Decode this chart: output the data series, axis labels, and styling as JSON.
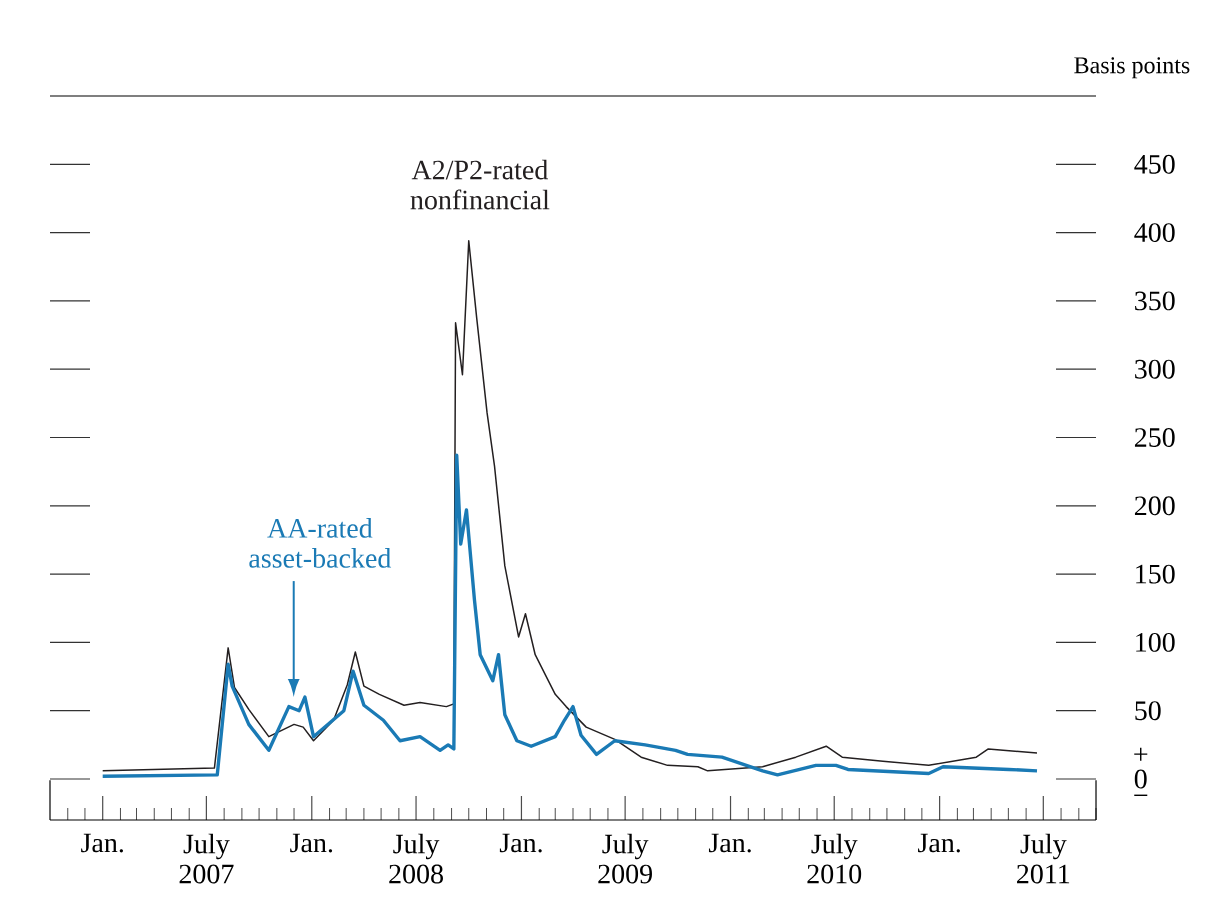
{
  "chart_data": {
    "type": "line",
    "ylabel": "Basis points",
    "annotations": [
      "+",
      "−"
    ],
    "xlim": [
      "2006-10",
      "2011-10"
    ],
    "ylim": [
      -30,
      500
    ],
    "xticks": [
      {
        "value": "2007-01",
        "label": "Jan."
      },
      {
        "value": "2007-07",
        "label": "July 2007"
      },
      {
        "value": "2008-01",
        "label": "Jan."
      },
      {
        "value": "2008-07",
        "label": "July 2008"
      },
      {
        "value": "2009-01",
        "label": "Jan."
      },
      {
        "value": "2009-07",
        "label": "July 2009"
      },
      {
        "value": "2010-01",
        "label": "Jan."
      },
      {
        "value": "2010-07",
        "label": "July 2010"
      },
      {
        "value": "2011-01",
        "label": "Jan."
      },
      {
        "value": "2011-07",
        "label": "July 2011"
      }
    ],
    "yticks": [
      0,
      50,
      100,
      150,
      200,
      250,
      300,
      350,
      400,
      450
    ],
    "series": [
      {
        "name": "A2/P2-rated nonfinancial",
        "color": "#231f20",
        "x": [
          "2007-01-01",
          "2007-07-15",
          "2007-08-08",
          "2007-08-19",
          "2007-09-13",
          "2007-10-18",
          "2007-12-01",
          "2007-12-17",
          "2008-01-04",
          "2008-02-08",
          "2008-03-03",
          "2008-03-17",
          "2008-04-01",
          "2008-04-28",
          "2008-06-10",
          "2008-07-08",
          "2008-08-23",
          "2008-09-05",
          "2008-09-08",
          "2008-09-20",
          "2008-10-01",
          "2008-10-15",
          "2008-11-02",
          "2008-11-15",
          "2008-12-03",
          "2008-12-27",
          "2009-01-08",
          "2009-01-25",
          "2009-02-12",
          "2009-03-01",
          "2009-03-20",
          "2009-04-24",
          "2009-06-13",
          "2009-07-29",
          "2009-09-13",
          "2009-11-05",
          "2009-11-22",
          "2010-02-26",
          "2010-04-25",
          "2010-06-17",
          "2010-07-15",
          "2010-09-24",
          "2010-12-13",
          "2011-03-06",
          "2011-03-27",
          "2011-06-20"
        ],
        "values": [
          6,
          8,
          96,
          67,
          51,
          31,
          40,
          38,
          28,
          43,
          69,
          93,
          68,
          62,
          54,
          56,
          53,
          55,
          334,
          296,
          394,
          337,
          268,
          229,
          156,
          104,
          121,
          91,
          76,
          62,
          53,
          38,
          29,
          16,
          10,
          9,
          6,
          9,
          16,
          24,
          16,
          13,
          10,
          16,
          22,
          19
        ]
      },
      {
        "name": "AA-rated asset-backed",
        "color": "#1a7ab5",
        "x": [
          "2007-01-01",
          "2007-07-20",
          "2007-08-08",
          "2007-08-15",
          "2007-09-13",
          "2007-10-18",
          "2007-11-22",
          "2007-12-10",
          "2007-12-20",
          "2008-01-04",
          "2008-02-26",
          "2008-03-13",
          "2008-04-01",
          "2008-05-05",
          "2008-06-03",
          "2008-07-08",
          "2008-08-12",
          "2008-08-26",
          "2008-09-05",
          "2008-09-10",
          "2008-09-17",
          "2008-09-27",
          "2008-10-11",
          "2008-10-21",
          "2008-11-12",
          "2008-11-22",
          "2008-12-03",
          "2008-12-24",
          "2009-01-18",
          "2009-03-01",
          "2009-03-17",
          "2009-04-01",
          "2009-04-15",
          "2009-05-12",
          "2009-06-13",
          "2009-08-05",
          "2009-09-27",
          "2009-10-18",
          "2009-12-17",
          "2010-02-26",
          "2010-03-24",
          "2010-05-30",
          "2010-07-04",
          "2010-07-25",
          "2010-12-13",
          "2011-01-07",
          "2011-05-02",
          "2011-06-20"
        ],
        "values": [
          2,
          3,
          84,
          68,
          40,
          21,
          53,
          50,
          60,
          31,
          50,
          79,
          54,
          43,
          28,
          31,
          21,
          25,
          22,
          237,
          172,
          197,
          131,
          91,
          72,
          91,
          47,
          28,
          24,
          31,
          43,
          53,
          32,
          18,
          28,
          25,
          21,
          18,
          16,
          6,
          3,
          10,
          10,
          7,
          4,
          9,
          7,
          6
        ]
      }
    ]
  }
}
